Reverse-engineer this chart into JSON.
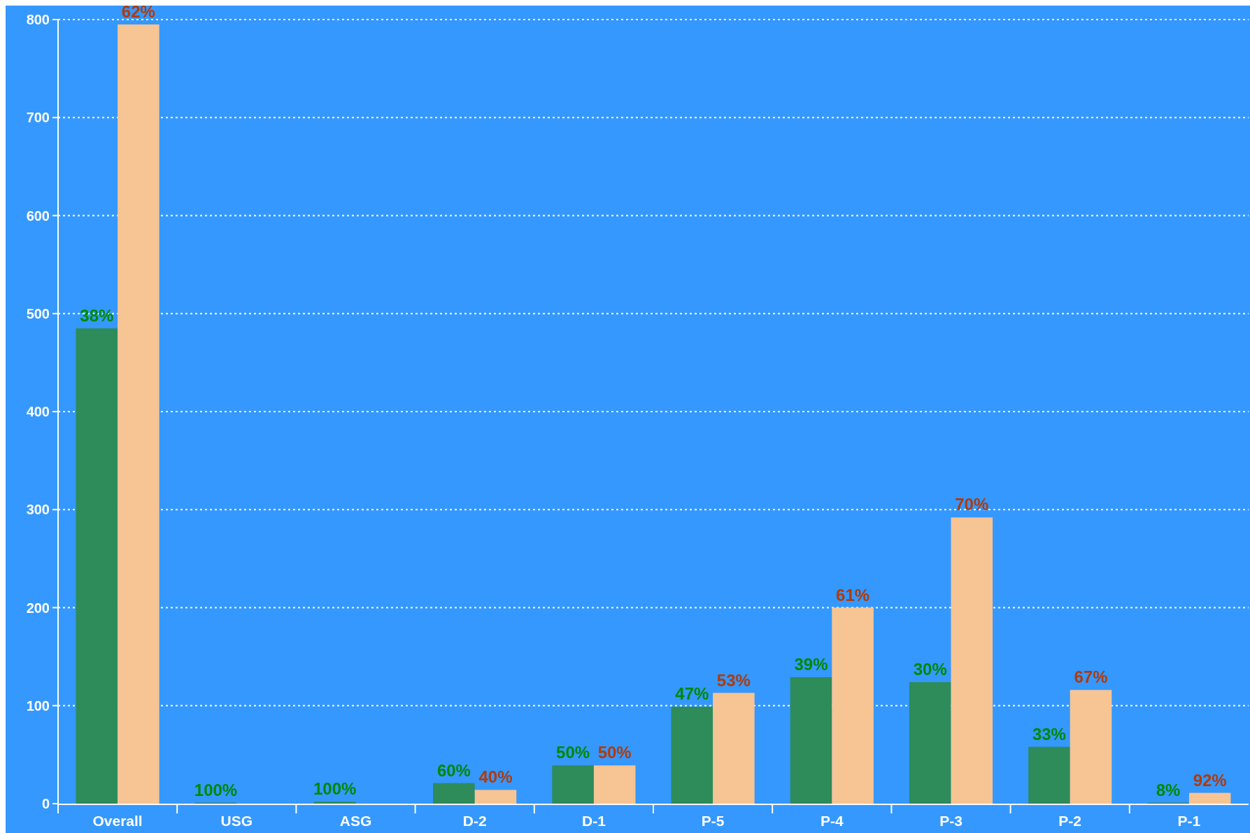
{
  "chart_data": {
    "type": "bar",
    "categories": [
      "Overall",
      "USG",
      "ASG",
      "D-2",
      "D-1",
      "P-5",
      "P-4",
      "P-3",
      "P-2",
      "P-1"
    ],
    "series": [
      {
        "color": "#2e8b5a",
        "values": [
          485,
          1,
          2,
          21,
          39,
          99,
          129,
          124,
          58,
          1
        ]
      },
      {
        "color": "#f7c493",
        "values": [
          795,
          0,
          0,
          14,
          39,
          113,
          200,
          292,
          116,
          11
        ]
      }
    ],
    "annotations": [
      {
        "text": "38%",
        "x": "Overall",
        "y": 485
      },
      {
        "text": "62%",
        "x": "Overall",
        "y": 795
      },
      {
        "text": "100%",
        "x": "USG",
        "y": 1
      },
      {
        "text": "100%",
        "x": "ASG",
        "y": 2
      },
      {
        "text": "60%",
        "x": "D-2",
        "y": 21
      },
      {
        "text": "40%",
        "x": "D-2",
        "y": 14
      },
      {
        "text": "50%",
        "x": "D-1",
        "y": 39
      },
      {
        "text": "50%",
        "x": "D-1",
        "y": 39
      },
      {
        "text": "47%",
        "x": "P-5",
        "y": 99
      },
      {
        "text": "53%",
        "x": "P-5",
        "y": 113
      },
      {
        "text": "39%",
        "x": "P-4",
        "y": 129
      },
      {
        "text": "61%",
        "x": "P-4",
        "y": 200
      },
      {
        "text": "30%",
        "x": "P-3",
        "y": 124
      },
      {
        "text": "70%",
        "x": "P-3",
        "y": 292
      },
      {
        "text": "33%",
        "x": "P-2",
        "y": 58
      },
      {
        "text": "67%",
        "x": "P-2",
        "y": 116
      },
      {
        "text": "8%",
        "x": "P-1",
        "y": 1
      },
      {
        "text": "92%",
        "x": "P-1",
        "y": 11
      }
    ],
    "ylim": [
      0,
      800
    ],
    "yticks": [
      0,
      100,
      200,
      300,
      400,
      500,
      600,
      700,
      800
    ],
    "grid": "y"
  }
}
